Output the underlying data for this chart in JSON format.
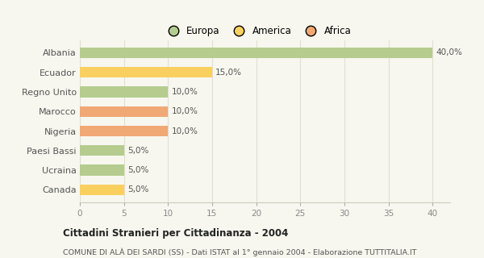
{
  "categories": [
    "Albania",
    "Ecuador",
    "Regno Unito",
    "Marocco",
    "Nigeria",
    "Paesi Bassi",
    "Ucraina",
    "Canada"
  ],
  "values": [
    40.0,
    15.0,
    10.0,
    10.0,
    10.0,
    5.0,
    5.0,
    5.0
  ],
  "colors": [
    "#b5cc8e",
    "#f9d060",
    "#b5cc8e",
    "#f0a875",
    "#f0a875",
    "#b5cc8e",
    "#b5cc8e",
    "#f9d060"
  ],
  "labels": [
    "40,0%",
    "15,0%",
    "10,0%",
    "10,0%",
    "10,0%",
    "5,0%",
    "5,0%",
    "5,0%"
  ],
  "legend_labels": [
    "Europa",
    "America",
    "Africa"
  ],
  "legend_colors": [
    "#b5cc8e",
    "#f9d060",
    "#f0a875"
  ],
  "title": "Cittadini Stranieri per Cittadinanza - 2004",
  "subtitle": "COMUNE DI ALÀ DEI SARDI (SS) - Dati ISTAT al 1° gennaio 2004 - Elaborazione TUTTITALIA.IT",
  "xlim": [
    0,
    42
  ],
  "xticks": [
    0,
    5,
    10,
    15,
    20,
    25,
    30,
    35,
    40
  ],
  "background_color": "#f7f7ef",
  "grid_color": "#e0e0d0",
  "bar_height": 0.55
}
